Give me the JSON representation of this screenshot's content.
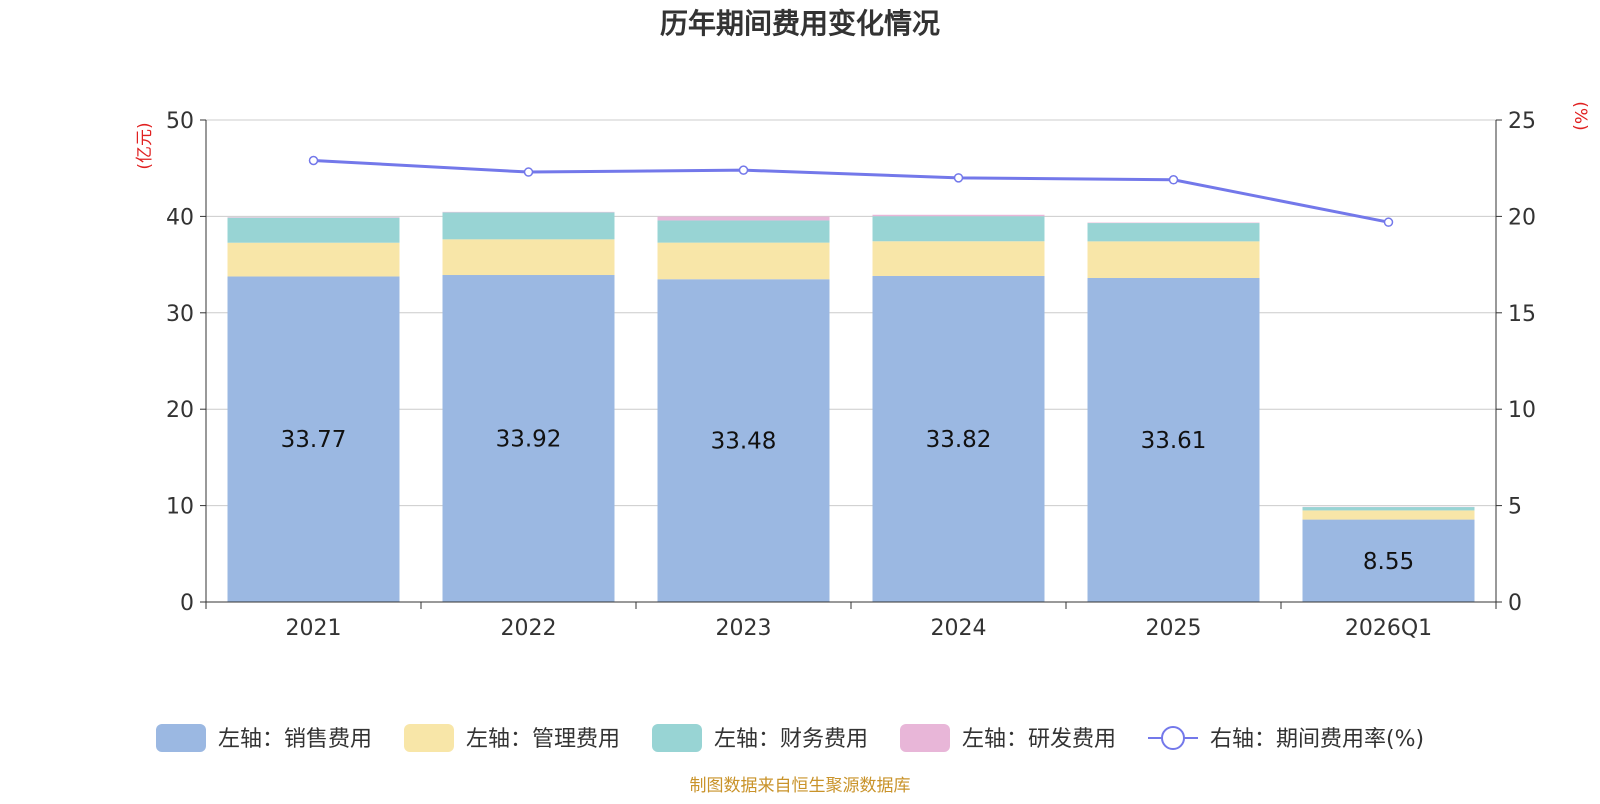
{
  "chart_data": {
    "type": "bar",
    "title": "历年期间费用变化情况",
    "source": "制图数据来自恒生聚源数据库",
    "left_axis_unit": "(亿元)",
    "right_axis_unit": "(%)",
    "left_ylim": [
      0,
      50
    ],
    "left_ticks": [
      0,
      10,
      20,
      30,
      40,
      50
    ],
    "right_ylim": [
      0,
      25
    ],
    "right_ticks": [
      0,
      5,
      10,
      15,
      20,
      25
    ],
    "categories": [
      "2021",
      "2022",
      "2023",
      "2024",
      "2025",
      "2026Q1"
    ],
    "series": [
      {
        "name": "左轴：销售费用",
        "type": "bar",
        "axis": "left",
        "color": "#9bb8e2",
        "values": [
          33.77,
          33.92,
          33.48,
          33.82,
          33.61,
          8.55
        ],
        "show_labels": true
      },
      {
        "name": "左轴：管理费用",
        "type": "bar",
        "axis": "left",
        "color": "#f8e6a8",
        "values": [
          3.5,
          3.7,
          3.8,
          3.6,
          3.8,
          0.95
        ]
      },
      {
        "name": "左轴：财务费用",
        "type": "bar",
        "axis": "left",
        "color": "#98d4d4",
        "values": [
          2.6,
          2.8,
          2.3,
          2.6,
          1.9,
          0.35
        ]
      },
      {
        "name": "左轴：研发费用",
        "type": "bar",
        "axis": "left",
        "color": "#e8b6d8",
        "values": [
          0.05,
          0.05,
          0.4,
          0.15,
          0.05,
          0.02
        ]
      },
      {
        "name": "右轴：期间费用率(%)",
        "type": "line",
        "axis": "right",
        "color": "#7378ea",
        "values": [
          22.9,
          22.3,
          22.4,
          22.0,
          21.9,
          19.7
        ]
      }
    ]
  }
}
